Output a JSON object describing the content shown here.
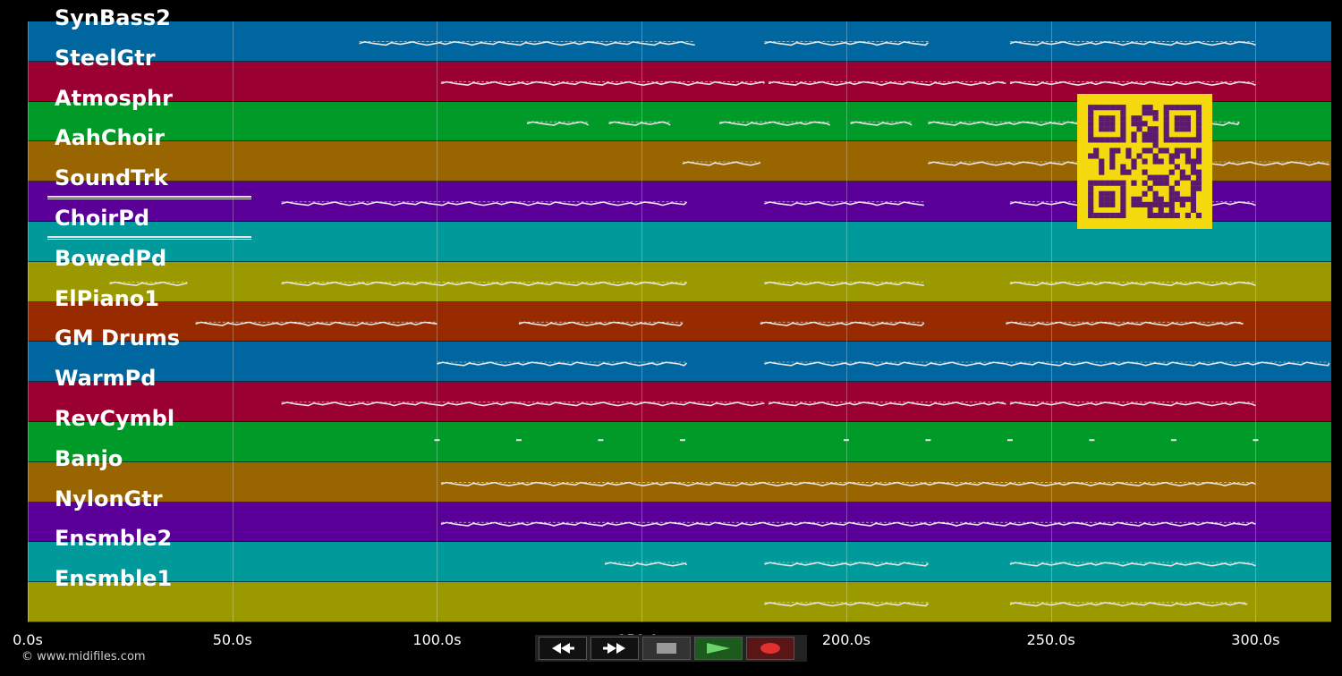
{
  "tracks": [
    {
      "name": "SynBass2",
      "color": "#00669f"
    },
    {
      "name": "SteelGtr",
      "color": "#9b0033"
    },
    {
      "name": "Atmosphr",
      "color": "#009a29"
    },
    {
      "name": "AahChoir",
      "color": "#986500"
    },
    {
      "name": "SoundTrk",
      "color": "#5a0099"
    },
    {
      "name": "ChoirPd",
      "color": "#009a9a"
    },
    {
      "name": "BowedPd",
      "color": "#9a9a00"
    },
    {
      "name": "ElPiano1",
      "color": "#982a00"
    },
    {
      "name": "GM Drums",
      "color": "#00669f"
    },
    {
      "name": "WarmPd",
      "color": "#9b0033"
    },
    {
      "name": "RevCymbl",
      "color": "#009a29"
    },
    {
      "name": "Banjo",
      "color": "#986500"
    },
    {
      "name": "NylonGtr",
      "color": "#5a0099"
    },
    {
      "name": "Ensmble2",
      "color": "#009a9a"
    },
    {
      "name": "Ensmble1",
      "color": "#9a9a00"
    }
  ],
  "timeline": {
    "max_seconds": 318.5,
    "ticks": [
      "0.0s",
      "50.0s",
      "100.0s",
      "150.0s",
      "200.0s",
      "250.0s",
      "300.0s"
    ],
    "tick_values": [
      0,
      50,
      100,
      150,
      200,
      250,
      300
    ]
  },
  "note_segments": [
    {
      "track": 0,
      "start": 81,
      "end": 163
    },
    {
      "track": 0,
      "start": 180,
      "end": 220
    },
    {
      "track": 0,
      "start": 240,
      "end": 300
    },
    {
      "track": 1,
      "start": 101,
      "end": 180
    },
    {
      "track": 1,
      "start": 181,
      "end": 239
    },
    {
      "track": 1,
      "start": 240,
      "end": 300
    },
    {
      "track": 2,
      "start": 122,
      "end": 137
    },
    {
      "track": 2,
      "start": 142,
      "end": 157
    },
    {
      "track": 2,
      "start": 169,
      "end": 196
    },
    {
      "track": 2,
      "start": 201,
      "end": 216
    },
    {
      "track": 2,
      "start": 220,
      "end": 296
    },
    {
      "track": 3,
      "start": 160,
      "end": 179
    },
    {
      "track": 3,
      "start": 220,
      "end": 318
    },
    {
      "track": 4,
      "start": 62,
      "end": 161
    },
    {
      "track": 4,
      "start": 180,
      "end": 219
    },
    {
      "track": 4,
      "start": 240,
      "end": 300
    },
    {
      "track": 6,
      "start": 20,
      "end": 39
    },
    {
      "track": 6,
      "start": 62,
      "end": 161
    },
    {
      "track": 6,
      "start": 180,
      "end": 219
    },
    {
      "track": 6,
      "start": 240,
      "end": 300
    },
    {
      "track": 7,
      "start": 41,
      "end": 100
    },
    {
      "track": 7,
      "start": 120,
      "end": 160
    },
    {
      "track": 7,
      "start": 179,
      "end": 219
    },
    {
      "track": 7,
      "start": 239,
      "end": 297
    },
    {
      "track": 8,
      "start": 100,
      "end": 161
    },
    {
      "track": 8,
      "start": 180,
      "end": 318
    },
    {
      "track": 9,
      "start": 62,
      "end": 180
    },
    {
      "track": 9,
      "start": 181,
      "end": 239
    },
    {
      "track": 9,
      "start": 240,
      "end": 300
    },
    {
      "track": 11,
      "start": 101,
      "end": 300
    },
    {
      "track": 12,
      "start": 101,
      "end": 300
    },
    {
      "track": 13,
      "start": 141,
      "end": 161
    },
    {
      "track": 13,
      "start": 180,
      "end": 220
    },
    {
      "track": 13,
      "start": 240,
      "end": 300
    },
    {
      "track": 14,
      "start": 180,
      "end": 220
    },
    {
      "track": 14,
      "start": 240,
      "end": 298
    }
  ],
  "cymbal_hits": [
    100,
    120,
    140,
    160,
    200,
    220,
    240,
    260,
    280,
    300
  ],
  "copyright": "© www.midifiles.com",
  "transport": {
    "rewind_icon": "rewind-icon",
    "forward_icon": "fast-forward-icon",
    "stop_icon": "stop-icon",
    "play_icon": "play-icon",
    "record_icon": "record-icon"
  },
  "colors": {
    "background": "#000000",
    "qr_bg": "#f5d90f",
    "qr_fg": "#5a1a6e",
    "note": "#e6e6e6"
  }
}
